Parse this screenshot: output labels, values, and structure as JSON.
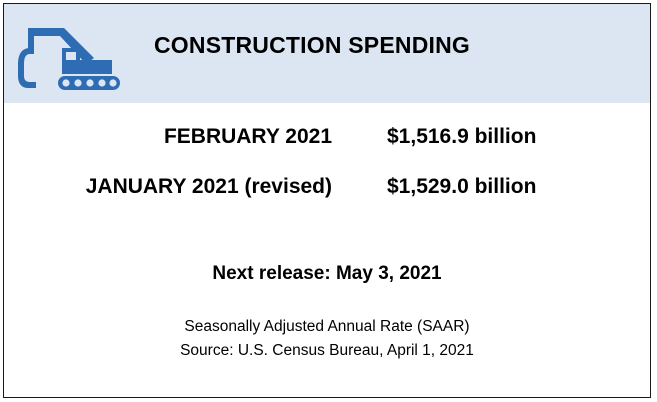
{
  "banner": {
    "title": "CONSTRUCTION SPENDING",
    "icon": "excavator-icon",
    "background_color": "#dce6f2",
    "icon_color": "#2e6db4"
  },
  "figures": [
    {
      "period": "FEBRUARY 2021",
      "amount": "$1,516.9 billion"
    },
    {
      "period": "JANUARY 2021 (revised)",
      "amount": "$1,529.0 billion"
    }
  ],
  "next_release": "Next release: May 3, 2021",
  "notes": {
    "rate_basis": "Seasonally Adjusted Annual Rate (SAAR)",
    "source": "Source: U.S. Census Bureau, April 1, 2021"
  }
}
